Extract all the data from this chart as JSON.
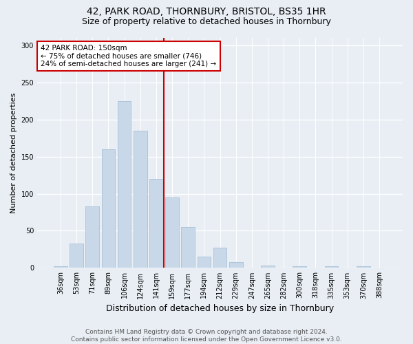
{
  "title1": "42, PARK ROAD, THORNBURY, BRISTOL, BS35 1HR",
  "title2": "Size of property relative to detached houses in Thornbury",
  "xlabel": "Distribution of detached houses by size in Thornbury",
  "ylabel": "Number of detached properties",
  "categories": [
    "36sqm",
    "53sqm",
    "71sqm",
    "89sqm",
    "106sqm",
    "124sqm",
    "141sqm",
    "159sqm",
    "177sqm",
    "194sqm",
    "212sqm",
    "229sqm",
    "247sqm",
    "265sqm",
    "282sqm",
    "300sqm",
    "318sqm",
    "335sqm",
    "353sqm",
    "370sqm",
    "388sqm"
  ],
  "values": [
    2,
    33,
    83,
    160,
    225,
    185,
    120,
    95,
    55,
    15,
    27,
    8,
    0,
    3,
    0,
    2,
    0,
    2,
    0,
    2,
    0
  ],
  "bar_color": "#c8d8e8",
  "bar_edge_color": "#a8c0d8",
  "vline_color": "#cc0000",
  "annotation_text": "42 PARK ROAD: 150sqm\n← 75% of detached houses are smaller (746)\n24% of semi-detached houses are larger (241) →",
  "annotation_box_color": "#ffffff",
  "annotation_box_edge": "#cc0000",
  "ylim": [
    0,
    310
  ],
  "yticks": [
    0,
    50,
    100,
    150,
    200,
    250,
    300
  ],
  "footer": "Contains HM Land Registry data © Crown copyright and database right 2024.\nContains public sector information licensed under the Open Government Licence v3.0.",
  "bg_color": "#e8eef4",
  "plot_bg_color": "#e8eef4",
  "title_fontsize": 10,
  "subtitle_fontsize": 9,
  "ylabel_fontsize": 8,
  "xlabel_fontsize": 9,
  "tick_fontsize": 7,
  "footer_fontsize": 6.5,
  "footer_color": "#555555"
}
